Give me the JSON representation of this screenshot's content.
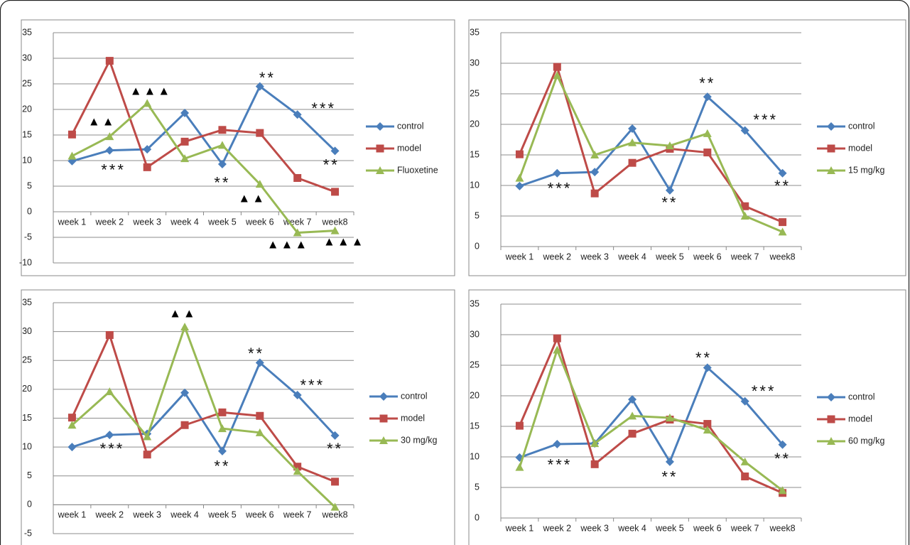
{
  "chart_data": [
    {
      "type": "line",
      "categories": [
        "week 1",
        "week 2",
        "week 3",
        "week 4",
        "week 5",
        "week 6",
        "week 7",
        "week8"
      ],
      "ylim": [
        -10,
        35
      ],
      "yticks": [
        -10,
        -5,
        0,
        5,
        10,
        15,
        20,
        25,
        30,
        35
      ],
      "grid": true,
      "series": [
        {
          "name": "control",
          "color": "#4a7ebb",
          "marker": "diamond",
          "values": [
            9.9,
            12,
            12.2,
            19.3,
            9.3,
            24.5,
            19,
            11.9
          ]
        },
        {
          "name": "model",
          "color": "#be4b48",
          "marker": "square",
          "values": [
            15.1,
            29.5,
            8.7,
            13.7,
            16,
            15.4,
            6.6,
            3.9
          ]
        },
        {
          "name": "Fluoxetine",
          "color": "#98b954",
          "marker": "triangle",
          "values": [
            10.9,
            14.7,
            21.2,
            10.4,
            13,
            5.4,
            -4.1,
            -3.7
          ]
        }
      ],
      "annotations": [
        "▲▲",
        "▲▲▲",
        "**",
        "***",
        "**",
        "***",
        "**",
        "▲▲",
        "▲▲▲",
        "▲▲▲"
      ]
    },
    {
      "type": "line",
      "categories": [
        "week 1",
        "week 2",
        "week 3",
        "week 4",
        "week 5",
        "week 6",
        "week 7",
        "week8"
      ],
      "ylim": [
        0,
        35
      ],
      "yticks": [
        0,
        5,
        10,
        15,
        20,
        25,
        30,
        35
      ],
      "grid": true,
      "series": [
        {
          "name": "control",
          "color": "#4a7ebb",
          "marker": "diamond",
          "values": [
            9.9,
            12,
            12.2,
            19.3,
            9.2,
            24.5,
            19,
            12
          ]
        },
        {
          "name": "model",
          "color": "#be4b48",
          "marker": "square",
          "values": [
            15.1,
            29.4,
            8.7,
            13.7,
            16,
            15.4,
            6.6,
            4
          ]
        },
        {
          "name": "15 mg/kg",
          "color": "#98b954",
          "marker": "triangle",
          "values": [
            11.2,
            28,
            15,
            17,
            16.5,
            18.5,
            5,
            2.4
          ]
        }
      ],
      "annotations": [
        "**",
        "***",
        "**",
        "***",
        "**"
      ]
    },
    {
      "type": "line",
      "categories": [
        "week 1",
        "week 2",
        "week 3",
        "week 4",
        "week 5",
        "week 6",
        "week 7",
        "week8"
      ],
      "ylim": [
        -5,
        35
      ],
      "yticks": [
        -5,
        0,
        5,
        10,
        15,
        20,
        25,
        30,
        35
      ],
      "grid": true,
      "series": [
        {
          "name": "control",
          "color": "#4a7ebb",
          "marker": "diamond",
          "values": [
            10,
            12.1,
            12.3,
            19.4,
            9.3,
            24.6,
            19,
            12
          ]
        },
        {
          "name": "model",
          "color": "#be4b48",
          "marker": "square",
          "values": [
            15.1,
            29.4,
            8.7,
            13.8,
            16,
            15.4,
            6.6,
            4
          ]
        },
        {
          "name": "30 mg/kg",
          "color": "#98b954",
          "marker": "triangle",
          "values": [
            13.8,
            19.6,
            11.8,
            30.8,
            13.2,
            12.5,
            5.8,
            -0.4
          ]
        }
      ],
      "annotations": [
        "▲▲",
        "**",
        "***",
        "**",
        "***",
        "**"
      ]
    },
    {
      "type": "line",
      "categories": [
        "week 1",
        "week 2",
        "week 3",
        "week 4",
        "week 5",
        "week 6",
        "week 7",
        "week8"
      ],
      "ylim": [
        0,
        35
      ],
      "yticks": [
        0,
        5,
        10,
        15,
        20,
        25,
        30,
        35
      ],
      "grid": true,
      "series": [
        {
          "name": "control",
          "color": "#4a7ebb",
          "marker": "diamond",
          "values": [
            9.9,
            12.1,
            12.2,
            19.4,
            9.2,
            24.6,
            19.1,
            12
          ]
        },
        {
          "name": "model",
          "color": "#be4b48",
          "marker": "square",
          "values": [
            15.1,
            29.4,
            8.8,
            13.8,
            16.1,
            15.4,
            6.8,
            4.1
          ]
        },
        {
          "name": "60 mg/kg",
          "color": "#98b954",
          "marker": "triangle",
          "values": [
            8.3,
            27.5,
            12.2,
            16.7,
            16.4,
            14.4,
            9.2,
            4.5
          ]
        }
      ],
      "annotations": [
        "**",
        "***",
        "**",
        "***",
        "**"
      ]
    }
  ]
}
